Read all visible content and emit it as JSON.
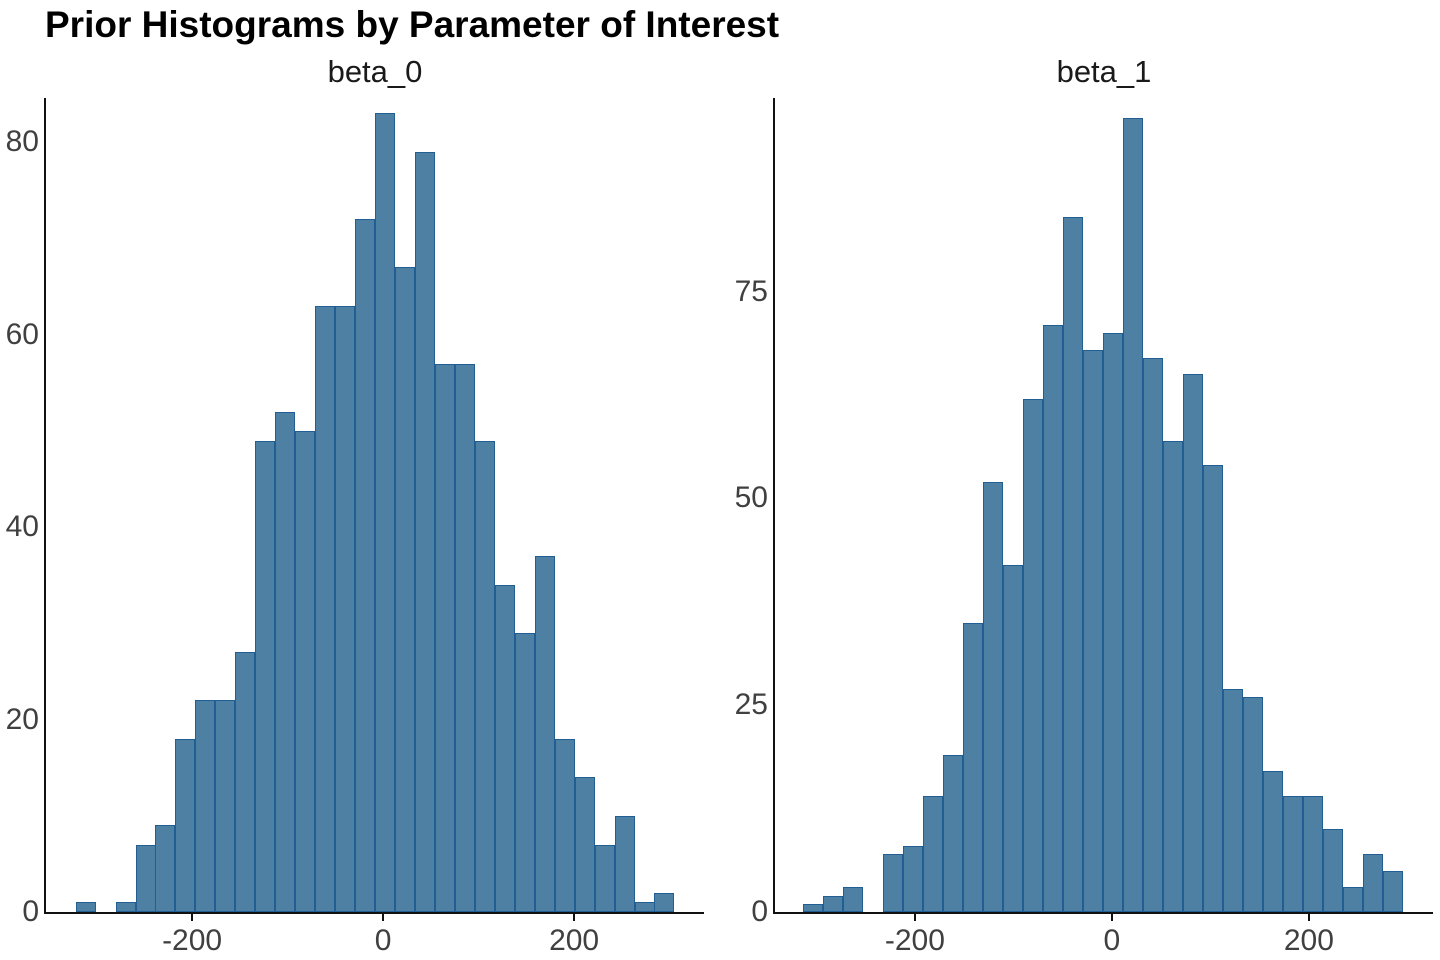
{
  "page_title": "Prior Histograms by Parameter of Interest",
  "colors": {
    "bar_fill": "#4E80A3",
    "bar_stroke": "#205E94",
    "axis": "#111111",
    "tick_label": "#404040",
    "title": "#000000"
  },
  "chart_data": [
    {
      "type": "bar",
      "title": "beta_0",
      "xlabel": "",
      "ylabel": "",
      "grid": false,
      "legend_position": "none",
      "x_ticks": [
        -200,
        0,
        200
      ],
      "y_ticks": [
        0,
        20,
        40,
        60,
        80
      ],
      "xlim": [
        -353,
        336
      ],
      "ylim": [
        0,
        84.6
      ],
      "bin_start": -322,
      "bin_width": 20.9,
      "n_total": 1000,
      "x": [
        -312,
        -291,
        -270,
        -249,
        -228,
        -207,
        -186,
        -165,
        -144,
        -124,
        -103,
        -82,
        -61,
        -40,
        -19,
        2,
        23,
        44,
        65,
        85,
        106,
        127,
        148,
        169,
        190,
        211,
        232,
        253,
        274,
        294
      ],
      "values": [
        1,
        0,
        1,
        7,
        9,
        18,
        22,
        22,
        27,
        49,
        52,
        50,
        63,
        63,
        72,
        83,
        67,
        79,
        57,
        57,
        49,
        34,
        29,
        37,
        18,
        14,
        7,
        10,
        1,
        2
      ]
    },
    {
      "type": "bar",
      "title": "beta_1",
      "xlabel": "",
      "ylabel": "",
      "grid": false,
      "legend_position": "none",
      "x_ticks": [
        -200,
        0,
        200
      ],
      "y_ticks": [
        0,
        25,
        50,
        75
      ],
      "xlim": [
        -342,
        326
      ],
      "ylim": [
        0,
        98.4
      ],
      "bin_start": -314,
      "bin_width": 20.3,
      "n_total": 1000,
      "x": [
        -304,
        -284,
        -263,
        -243,
        -223,
        -202,
        -182,
        -162,
        -141,
        -121,
        -101,
        -81,
        -60,
        -40,
        -20,
        1,
        21,
        41,
        62,
        82,
        102,
        122,
        143,
        163,
        183,
        204,
        224,
        244,
        265,
        285
      ],
      "values": [
        1,
        2,
        3,
        0,
        7,
        8,
        14,
        19,
        35,
        52,
        42,
        62,
        71,
        84,
        68,
        70,
        96,
        67,
        57,
        65,
        54,
        27,
        26,
        17,
        14,
        14,
        10,
        3,
        7,
        5
      ]
    }
  ]
}
